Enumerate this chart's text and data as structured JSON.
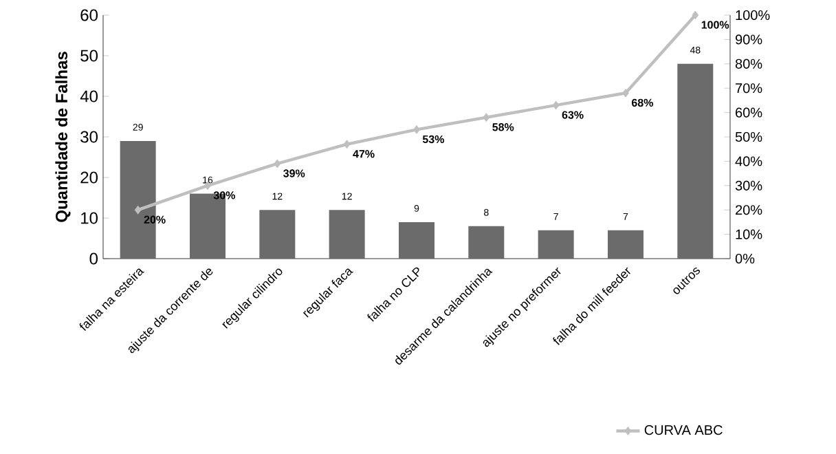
{
  "chart_data": {
    "type": "bar",
    "ylabel": "Quantidade de Falhas",
    "categories": [
      "falha na esteira",
      "ajuste da corrente de",
      "regular cilindro",
      "regular faca",
      "falha no CLP",
      "desarme da calandrinha",
      "ajuste no preformer",
      "falha do mill feeder",
      "outros"
    ],
    "series": [
      {
        "color": "#6b6b6b",
        "values": [
          29,
          16,
          12,
          12,
          9,
          8,
          7,
          7,
          48
        ],
        "value_labels": [
          "29",
          "16",
          "12",
          "12",
          "9",
          "8",
          "7",
          "7",
          "48"
        ]
      },
      {
        "type": "line",
        "name": "CURVA ABC",
        "axis": "y2",
        "color": "#bfbfbf",
        "marker": "diamond",
        "values": [
          20,
          30,
          39,
          47,
          53,
          58,
          63,
          68,
          100
        ],
        "value_labels": [
          "20%",
          "30%",
          "39%",
          "47%",
          "53%",
          "58%",
          "63%",
          "68%",
          "100%"
        ]
      }
    ],
    "ylim": [
      0,
      60
    ],
    "yticks": [
      0,
      10,
      20,
      30,
      40,
      50,
      60
    ],
    "y2lim": [
      0,
      100
    ],
    "y2ticks": [
      {
        "value": 0,
        "label": "0%"
      },
      {
        "value": 10,
        "label": "10%"
      },
      {
        "value": 20,
        "label": "20%"
      },
      {
        "value": 30,
        "label": "30%"
      },
      {
        "value": 40,
        "label": "40%"
      },
      {
        "value": 50,
        "label": "50%"
      },
      {
        "value": 60,
        "label": "60%"
      },
      {
        "value": 70,
        "label": "70%"
      },
      {
        "value": 80,
        "label": "80%"
      },
      {
        "value": 90,
        "label": "90%"
      },
      {
        "value": 100,
        "label": "100%"
      }
    ],
    "legend": "bottom right"
  }
}
